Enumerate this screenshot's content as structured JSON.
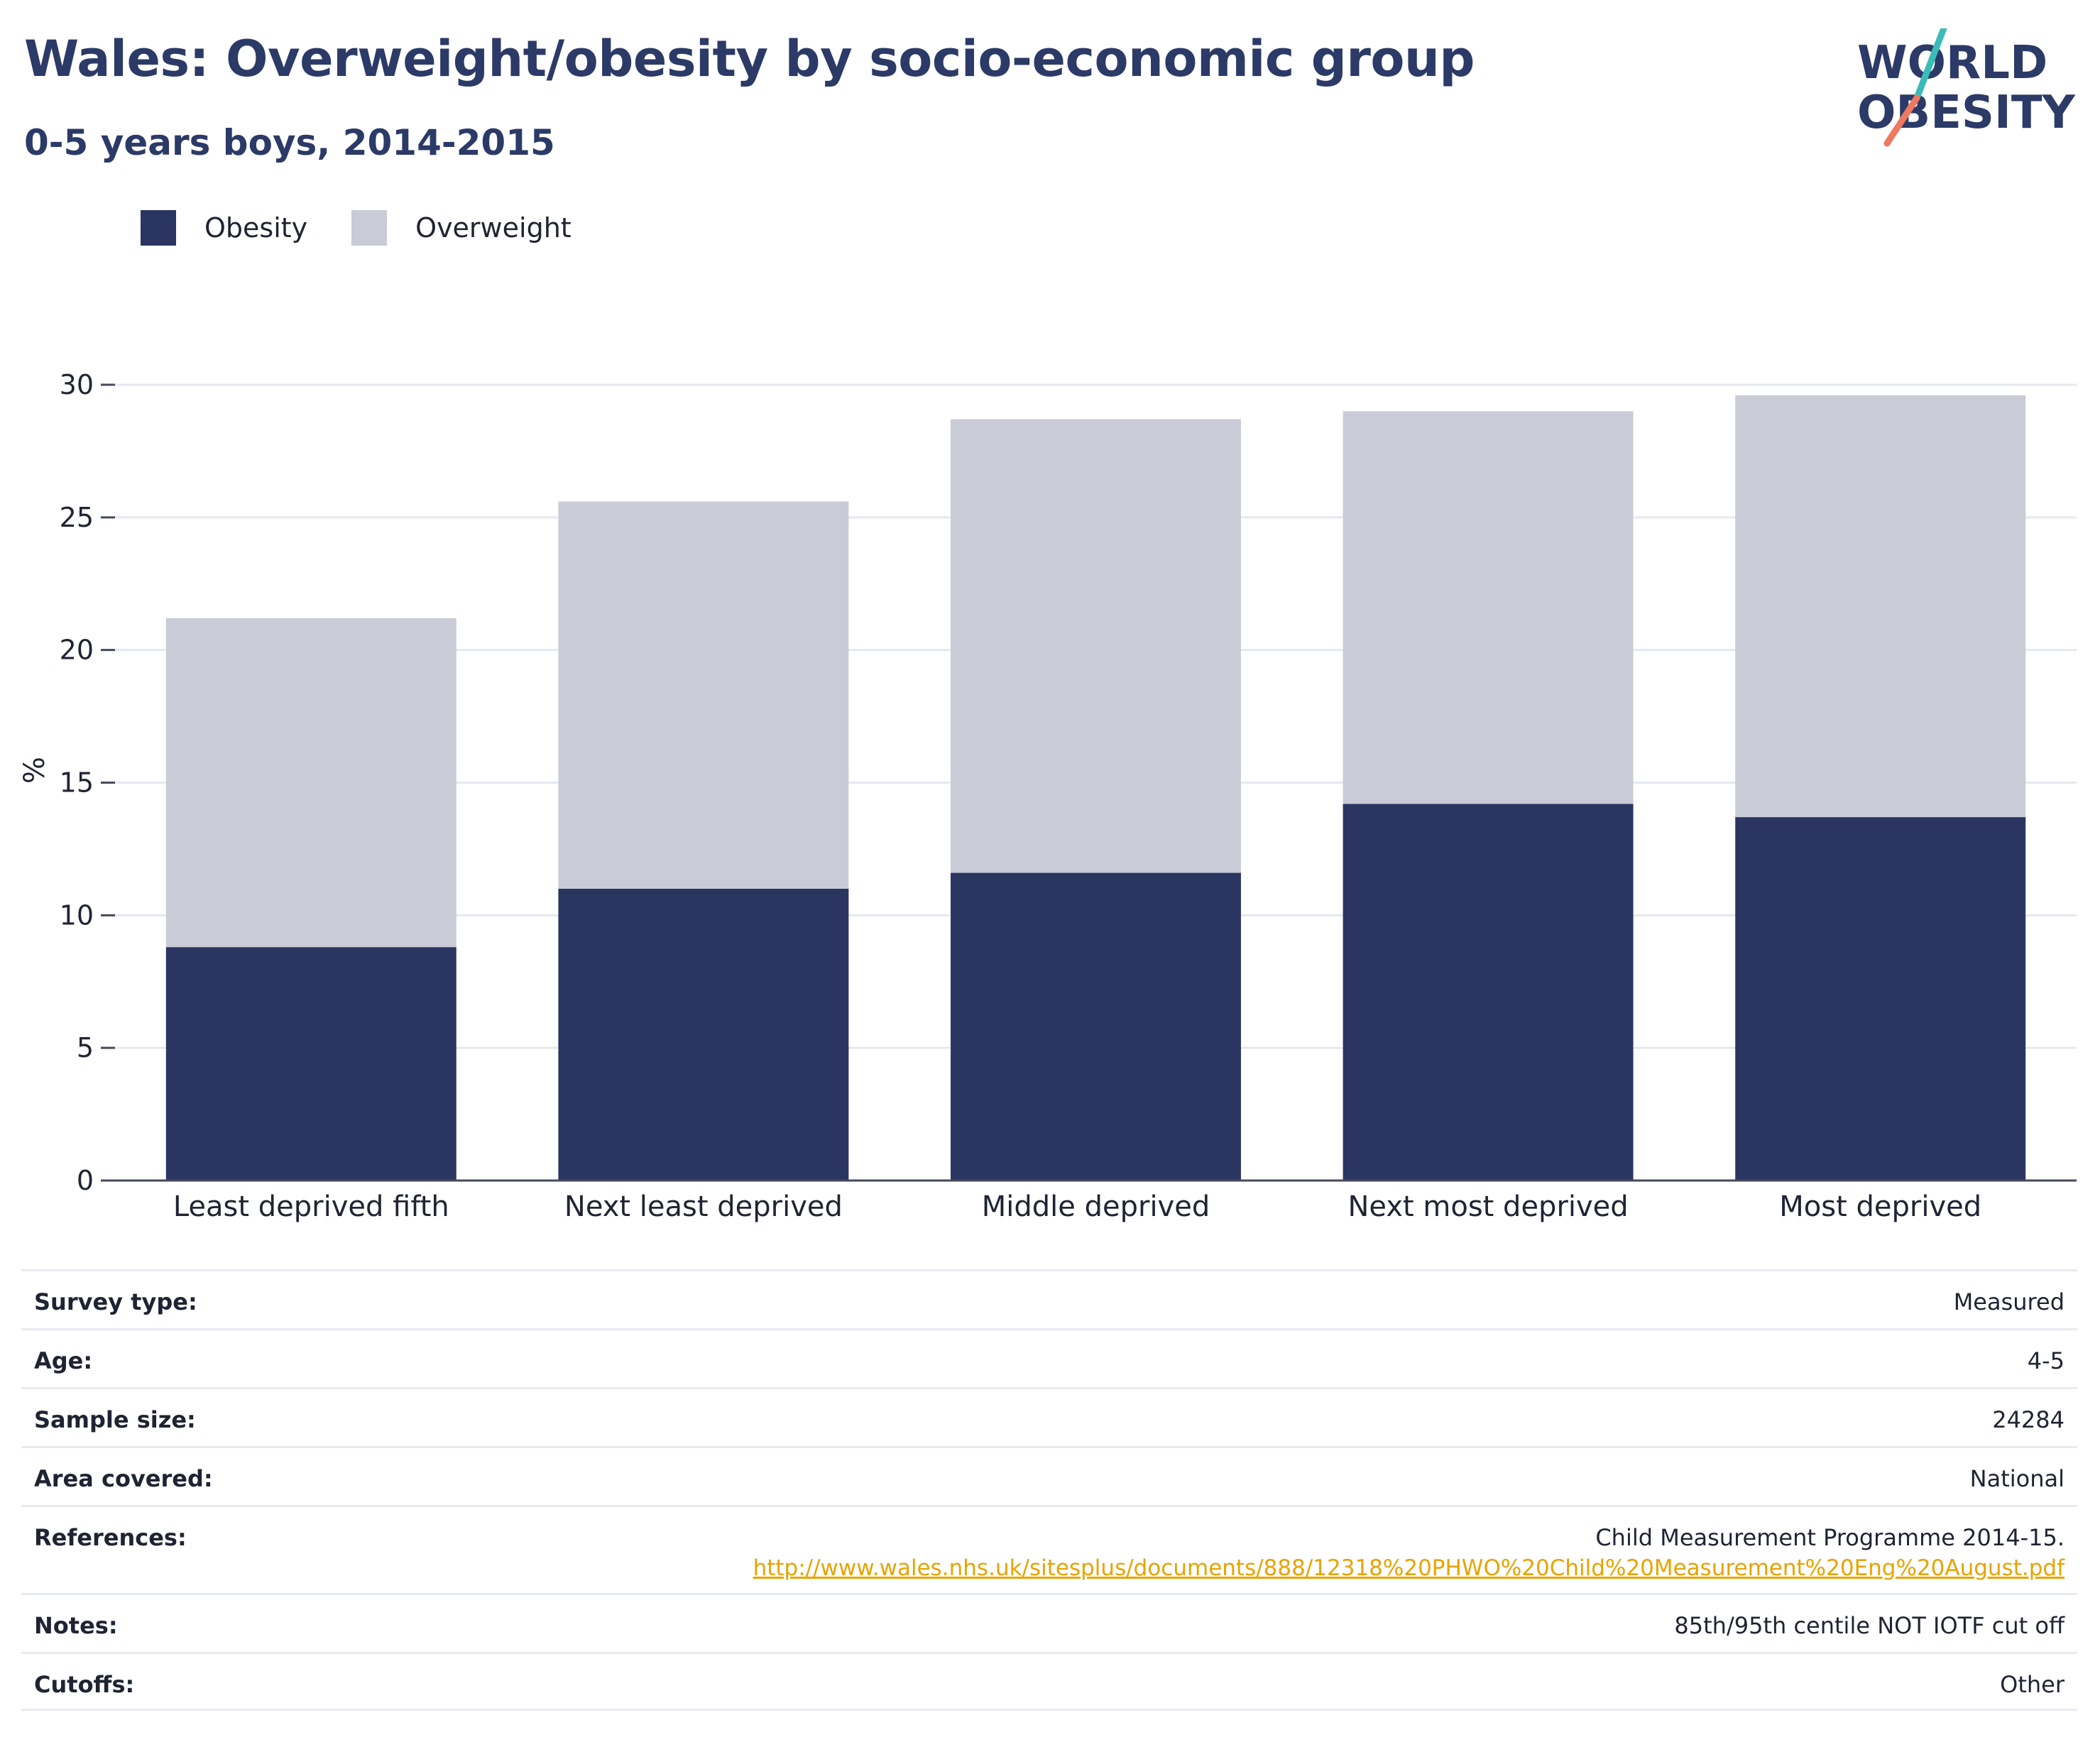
{
  "title": "Wales: Overweight/obesity by socio-economic group",
  "subtitle": "0-5 years boys, 2014-2015",
  "logo": {
    "line1": "WORLD",
    "line2": "OBESITY"
  },
  "legend": [
    {
      "name": "Obesity",
      "color": "#2a3561"
    },
    {
      "name": "Overweight",
      "color": "#c9cbd6"
    }
  ],
  "chart_data": {
    "type": "bar",
    "stacked": true,
    "categories": [
      "Least deprived fifth",
      "Next least deprived",
      "Middle deprived",
      "Next most deprived",
      "Most deprived"
    ],
    "series": [
      {
        "name": "Obesity",
        "color": "#2a3561",
        "values": [
          8.8,
          11.0,
          11.6,
          14.2,
          13.7
        ]
      },
      {
        "name": "Overweight",
        "color": "#c9cbd6",
        "values": [
          12.4,
          14.6,
          17.1,
          14.8,
          15.9
        ]
      }
    ],
    "ylabel": "%",
    "ylim": [
      0,
      30
    ],
    "yticks": [
      0,
      5,
      10,
      15,
      20,
      25,
      30
    ],
    "grid": true,
    "legend_position": "top-left"
  },
  "meta": [
    {
      "key": "Survey type:",
      "value": "Measured"
    },
    {
      "key": "Age:",
      "value": "4-5"
    },
    {
      "key": "Sample size:",
      "value": "24284"
    },
    {
      "key": "Area covered:",
      "value": "National"
    },
    {
      "key": "References:",
      "value": "Child Measurement Programme 2014-15.",
      "link": "http://www.wales.nhs.uk/sitesplus/documents/888/12318%20PHWO%20Child%20Measurement%20Eng%20August.pdf"
    },
    {
      "key": "Notes:",
      "value": "85th/95th centile NOT IOTF cut off"
    },
    {
      "key": "Cutoffs:",
      "value": "Other"
    }
  ]
}
